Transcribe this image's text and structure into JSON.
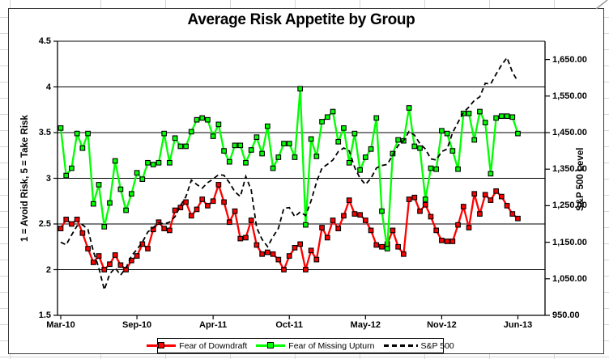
{
  "chart_data": {
    "type": "line",
    "title": "Average Risk Appetite by Group",
    "grid": "horizontal",
    "legend_position": "bottom",
    "left_axis": {
      "title": "1 = Avoid Risk, 5 = Take Risk",
      "min": 1.5,
      "max": 4.5,
      "tick_labels": [
        "4.5",
        "4",
        "3.5",
        "3",
        "2.5",
        "2",
        "1.5"
      ],
      "tick_values": [
        4.5,
        4,
        3.5,
        3,
        2.5,
        2,
        1.5
      ]
    },
    "right_axis": {
      "title": "S&P 500 Level",
      "min": 950,
      "axis_max": 1700,
      "tick_labels": [
        "1,650.00",
        "1,550.00",
        "1,450.00",
        "1,350.00",
        "1,250.00",
        "1,150.00",
        "1,050.00",
        "950.00"
      ],
      "tick_values": [
        1650,
        1550,
        1450,
        1350,
        1250,
        1150,
        1050,
        950
      ]
    },
    "x_axis": {
      "tick_labels": [
        "Mar-10",
        "Sep-10",
        "Apr-11",
        "Oct-11",
        "May-12",
        "Nov-12",
        "Jun-13"
      ],
      "label_indices": [
        0,
        14,
        28,
        42,
        56,
        70,
        84
      ],
      "point_count": 85
    },
    "series": [
      {
        "name": "Fear of Downdraft",
        "axis": "left",
        "color": "#ff0000",
        "marker": "square",
        "style": "solid",
        "values": [
          2.45,
          2.55,
          2.5,
          2.55,
          2.4,
          2.23,
          2.08,
          2.15,
          2.0,
          2.06,
          2.16,
          2.05,
          2.0,
          2.1,
          2.15,
          2.28,
          2.23,
          2.44,
          2.52,
          2.45,
          2.43,
          2.65,
          2.68,
          2.74,
          2.59,
          2.66,
          2.77,
          2.7,
          2.75,
          2.93,
          2.74,
          2.52,
          2.64,
          2.34,
          2.35,
          2.54,
          2.27,
          2.17,
          2.19,
          2.17,
          2.11,
          2.0,
          2.15,
          2.24,
          2.28,
          2.0,
          2.21,
          2.11,
          2.46,
          2.35,
          2.54,
          2.45,
          2.59,
          2.76,
          2.61,
          2.6,
          2.54,
          2.43,
          2.27,
          2.25,
          2.28,
          2.43,
          2.25,
          2.17,
          2.77,
          2.79,
          2.64,
          2.71,
          2.58,
          2.43,
          2.32,
          2.31,
          2.31,
          2.49,
          2.69,
          2.46,
          2.83,
          2.61,
          2.82,
          2.76,
          2.86,
          2.8,
          2.7,
          2.61,
          2.56
        ]
      },
      {
        "name": "Fear of Missing Upturn",
        "axis": "left",
        "color": "#00ff00",
        "marker": "square",
        "style": "solid",
        "values": [
          3.55,
          3.03,
          3.11,
          3.49,
          3.33,
          3.49,
          2.72,
          2.93,
          2.47,
          2.73,
          3.19,
          2.88,
          2.65,
          2.83,
          3.06,
          2.99,
          3.17,
          3.15,
          3.17,
          3.49,
          3.17,
          3.44,
          3.35,
          3.35,
          3.51,
          3.64,
          3.66,
          3.64,
          3.46,
          3.59,
          3.3,
          3.18,
          3.36,
          3.36,
          3.17,
          3.31,
          3.45,
          3.27,
          3.57,
          3.11,
          3.23,
          3.38,
          3.38,
          3.23,
          3.98,
          2.49,
          3.43,
          3.24,
          3.62,
          3.67,
          3.73,
          3.4,
          3.55,
          3.17,
          3.49,
          3.09,
          3.23,
          3.32,
          3.66,
          2.64,
          2.23,
          3.27,
          3.42,
          3.41,
          3.77,
          3.35,
          3.33,
          2.77,
          3.11,
          3.1,
          3.52,
          3.49,
          3.3,
          3.1,
          3.71,
          3.71,
          3.42,
          3.73,
          3.61,
          3.05,
          3.66,
          3.68,
          3.68,
          3.67,
          3.49
        ]
      },
      {
        "name": "S&P 500",
        "axis": "right",
        "color": "#000000",
        "marker": "none",
        "style": "dashed",
        "values": [
          1150,
          1143,
          1170,
          1195,
          1198,
          1185,
          1125,
          1080,
          1020,
          1063,
          1080,
          1060,
          1080,
          1113,
          1130,
          1150,
          1178,
          1190,
          1203,
          1200,
          1205,
          1220,
          1250,
          1275,
          1320,
          1308,
          1298,
          1313,
          1323,
          1335,
          1333,
          1313,
          1288,
          1275,
          1330,
          1293,
          1190,
          1158,
          1138,
          1165,
          1188,
          1243,
          1245,
          1220,
          1233,
          1223,
          1263,
          1315,
          1353,
          1363,
          1375,
          1398,
          1408,
          1400,
          1355,
          1325,
          1308,
          1325,
          1353,
          1360,
          1363,
          1388,
          1415,
          1428,
          1453,
          1443,
          1420,
          1405,
          1378,
          1375,
          1398,
          1405,
          1450,
          1478,
          1505,
          1520,
          1538,
          1548,
          1585,
          1583,
          1610,
          1635,
          1655,
          1615,
          1590
        ]
      }
    ]
  }
}
